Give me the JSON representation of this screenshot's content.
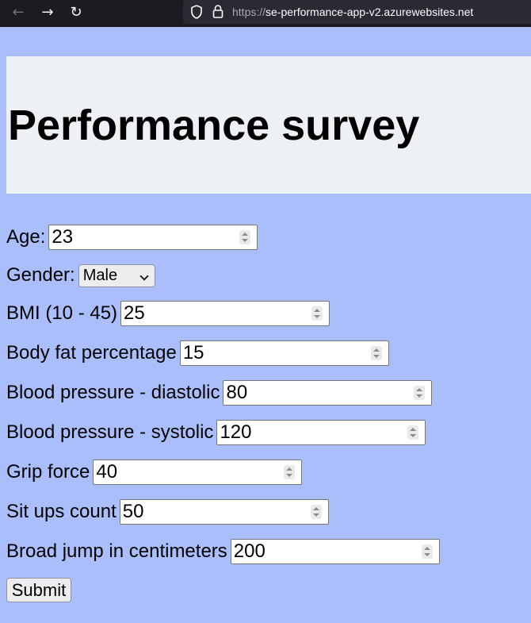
{
  "browser": {
    "back_icon": "←",
    "forward_icon": "→",
    "reload_icon": "↻",
    "url_scheme": "https://",
    "url_host": "se-performance-app-v2.azurewebsites.net"
  },
  "page": {
    "title": "Performance survey"
  },
  "form": {
    "age": {
      "label": "Age:",
      "value": "23"
    },
    "gender": {
      "label": "Gender:",
      "value": "Male"
    },
    "bmi": {
      "label": "BMI (10 - 45)",
      "value": "25"
    },
    "body_fat": {
      "label": "Body fat percentage",
      "value": "15"
    },
    "diastolic": {
      "label": "Blood pressure - diastolic",
      "value": "80"
    },
    "systolic": {
      "label": "Blood pressure - systolic",
      "value": "120"
    },
    "grip": {
      "label": "Grip force",
      "value": "40"
    },
    "situps": {
      "label": "Sit ups count",
      "value": "50"
    },
    "jump": {
      "label": "Broad jump in centimeters",
      "value": "200"
    },
    "submit_label": "Submit"
  }
}
